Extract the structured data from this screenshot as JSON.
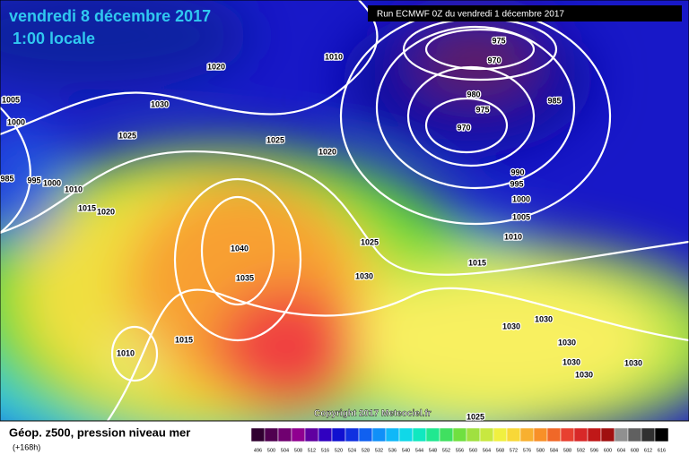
{
  "header": {
    "date": "vendredi 8 décembre 2017",
    "time": "1:00 locale",
    "run": "Run ECMWF 0Z du vendredi 1 décembre 2017"
  },
  "copyright": "Copyright 2017 Meteociel.fr",
  "footer": {
    "title": "Géop. z500, pression niveau mer",
    "lead": "(+168h)"
  },
  "colorbar": {
    "labels": [
      496,
      500,
      504,
      508,
      512,
      516,
      520,
      524,
      528,
      532,
      536,
      540,
      544,
      548,
      552,
      556,
      560,
      564,
      568,
      572,
      576,
      580,
      584,
      588,
      592,
      596,
      600,
      604,
      608,
      612,
      616
    ]
  },
  "isobar_labels": [
    1005,
    1000,
    985,
    995,
    1000,
    1010,
    1015,
    1020,
    1020,
    1030,
    1025,
    1025,
    1020,
    1010,
    975,
    970,
    980,
    975,
    970,
    985,
    990,
    995,
    1000,
    1005,
    1010,
    1025,
    1040,
    1035,
    1030,
    1015,
    1030,
    1030,
    1030,
    1030,
    1030,
    1030,
    1010,
    1015,
    1025
  ]
}
